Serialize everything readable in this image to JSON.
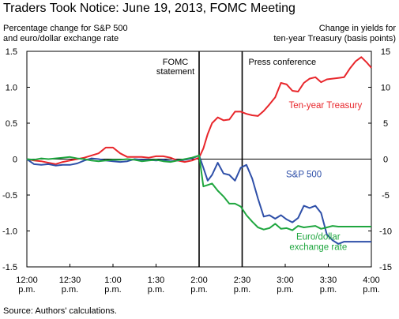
{
  "title": "Traders Took Notice: June 19, 2013, FOMC Meeting",
  "left_axis_label": [
    "Percentage change for S&P 500",
    "and euro/dollar exchange rate"
  ],
  "right_axis_label": [
    "Change in yields for",
    "ten-year Treasury (basis points)"
  ],
  "source": "Source: Authors' calculations.",
  "chart_data": {
    "type": "line",
    "x_ticks": [
      {
        "t": 0,
        "label": [
          "12:00",
          "p.m."
        ]
      },
      {
        "t": 30,
        "label": [
          "12:30",
          "p.m."
        ]
      },
      {
        "t": 60,
        "label": [
          "1:00",
          "p.m."
        ]
      },
      {
        "t": 90,
        "label": [
          "1:30",
          "p.m."
        ]
      },
      {
        "t": 120,
        "label": [
          "2:00",
          "p.m."
        ]
      },
      {
        "t": 150,
        "label": [
          "2:30",
          "p.m."
        ]
      },
      {
        "t": 180,
        "label": [
          "3:00",
          "p.m."
        ]
      },
      {
        "t": 210,
        "label": [
          "3:30",
          "p.m."
        ]
      },
      {
        "t": 240,
        "label": [
          "4:00",
          "p.m."
        ]
      }
    ],
    "xlim": [
      0,
      240
    ],
    "y_left": {
      "lim": [
        -1.5,
        1.5
      ],
      "ticks": [
        1.5,
        1.0,
        0.5,
        0,
        -0.5,
        -1.0,
        -1.5
      ],
      "tick_labels": [
        "1.5",
        "1.0",
        "0.5",
        "0",
        "-0.5",
        "-1.0",
        "-1.5"
      ]
    },
    "y_right": {
      "lim": [
        -15,
        15
      ],
      "ticks": [
        15,
        10,
        5,
        0,
        -5,
        -10,
        -15
      ],
      "tick_labels": [
        "15",
        "10",
        "5",
        "0",
        "-5",
        "-10",
        "-15"
      ]
    },
    "vertical_markers": [
      {
        "t": 120,
        "label": [
          "FOMC",
          "statement"
        ]
      },
      {
        "t": 150,
        "label": [
          "Press conference"
        ]
      }
    ],
    "series": [
      {
        "name": "Ten-year Treasury",
        "axis": "right",
        "color": "#e8262b",
        "label": [
          "Ten-year Treasury"
        ],
        "x": [
          0,
          5,
          10,
          15,
          20,
          25,
          30,
          35,
          40,
          45,
          50,
          55,
          60,
          65,
          70,
          75,
          80,
          85,
          90,
          95,
          100,
          105,
          110,
          115,
          120,
          123,
          126,
          129,
          133,
          137,
          141,
          145,
          149,
          153,
          157,
          161,
          165,
          169,
          173,
          177,
          181,
          185,
          189,
          193,
          197,
          201,
          205,
          209,
          213,
          217,
          221,
          225,
          229,
          233,
          237,
          240
        ],
        "y": [
          0,
          -0.2,
          -0.3,
          -0.5,
          -0.7,
          -0.4,
          -0.2,
          0,
          0.2,
          0.5,
          0.8,
          1.6,
          1.6,
          0.8,
          0.3,
          0.3,
          0.3,
          0.2,
          0.4,
          0.4,
          0.2,
          -0.2,
          -0.4,
          -0.2,
          0.2,
          1.5,
          3.5,
          5.0,
          5.8,
          5.4,
          5.5,
          6.6,
          6.6,
          6.3,
          6.1,
          6.0,
          6.7,
          7.6,
          8.6,
          10.6,
          10.4,
          9.5,
          9.4,
          10.6,
          11.2,
          11.4,
          10.7,
          11.1,
          11.2,
          11.3,
          11.4,
          12.6,
          13.6,
          14.2,
          13.4,
          12.7
        ]
      },
      {
        "name": "S&P 500",
        "axis": "left",
        "color": "#2e4fa8",
        "label": [
          "S&P 500"
        ],
        "x": [
          0,
          5,
          10,
          15,
          20,
          25,
          30,
          35,
          40,
          45,
          50,
          55,
          60,
          65,
          70,
          75,
          80,
          85,
          90,
          95,
          100,
          105,
          110,
          115,
          120,
          123,
          126,
          129,
          133,
          137,
          141,
          145,
          149,
          153,
          157,
          161,
          165,
          169,
          173,
          177,
          181,
          185,
          189,
          193,
          197,
          201,
          205,
          209,
          213,
          217,
          221,
          225,
          229,
          233,
          237,
          240
        ],
        "y": [
          0,
          -0.07,
          -0.08,
          -0.07,
          -0.09,
          -0.08,
          -0.08,
          -0.06,
          -0.02,
          0.01,
          0.0,
          -0.02,
          -0.03,
          -0.04,
          -0.03,
          0.0,
          -0.01,
          -0.01,
          -0.02,
          -0.01,
          -0.03,
          -0.02,
          -0.01,
          0.01,
          0.05,
          -0.12,
          -0.3,
          -0.22,
          -0.05,
          -0.2,
          -0.22,
          -0.3,
          -0.12,
          -0.08,
          -0.27,
          -0.55,
          -0.8,
          -0.78,
          -0.83,
          -0.78,
          -0.84,
          -0.88,
          -0.82,
          -0.65,
          -0.68,
          -0.65,
          -0.75,
          -1.05,
          -1.13,
          -1.18,
          -1.15,
          -1.15,
          -1.15,
          -1.15,
          -1.15,
          -1.15
        ]
      },
      {
        "name": "Euro/dollar exchange rate",
        "axis": "left",
        "color": "#1fa63f",
        "label": [
          "Euro/dollar",
          "exchange rate"
        ],
        "x": [
          0,
          5,
          10,
          15,
          20,
          25,
          30,
          35,
          40,
          45,
          50,
          55,
          60,
          65,
          70,
          75,
          80,
          85,
          90,
          95,
          100,
          105,
          110,
          115,
          120,
          123,
          126,
          129,
          133,
          137,
          141,
          145,
          149,
          153,
          157,
          161,
          165,
          169,
          173,
          177,
          181,
          185,
          189,
          193,
          197,
          201,
          205,
          209,
          213,
          217,
          221,
          225,
          229,
          233,
          237,
          240
        ],
        "y": [
          0,
          -0.01,
          0.01,
          0.0,
          0.01,
          0.02,
          0.03,
          0.01,
          0.0,
          -0.02,
          -0.03,
          -0.02,
          -0.01,
          -0.01,
          0.0,
          -0.01,
          -0.03,
          -0.02,
          -0.01,
          -0.03,
          -0.04,
          -0.02,
          0.0,
          0.02,
          0.05,
          -0.38,
          -0.36,
          -0.34,
          -0.44,
          -0.52,
          -0.62,
          -0.62,
          -0.66,
          -0.78,
          -0.87,
          -0.95,
          -0.98,
          -0.96,
          -0.9,
          -0.97,
          -0.96,
          -0.99,
          -0.93,
          -0.95,
          -0.94,
          -0.93,
          -0.97,
          -0.95,
          -0.93,
          -0.94,
          -0.94,
          -0.94,
          -0.94,
          -0.94,
          -0.94,
          -0.94
        ]
      }
    ]
  }
}
